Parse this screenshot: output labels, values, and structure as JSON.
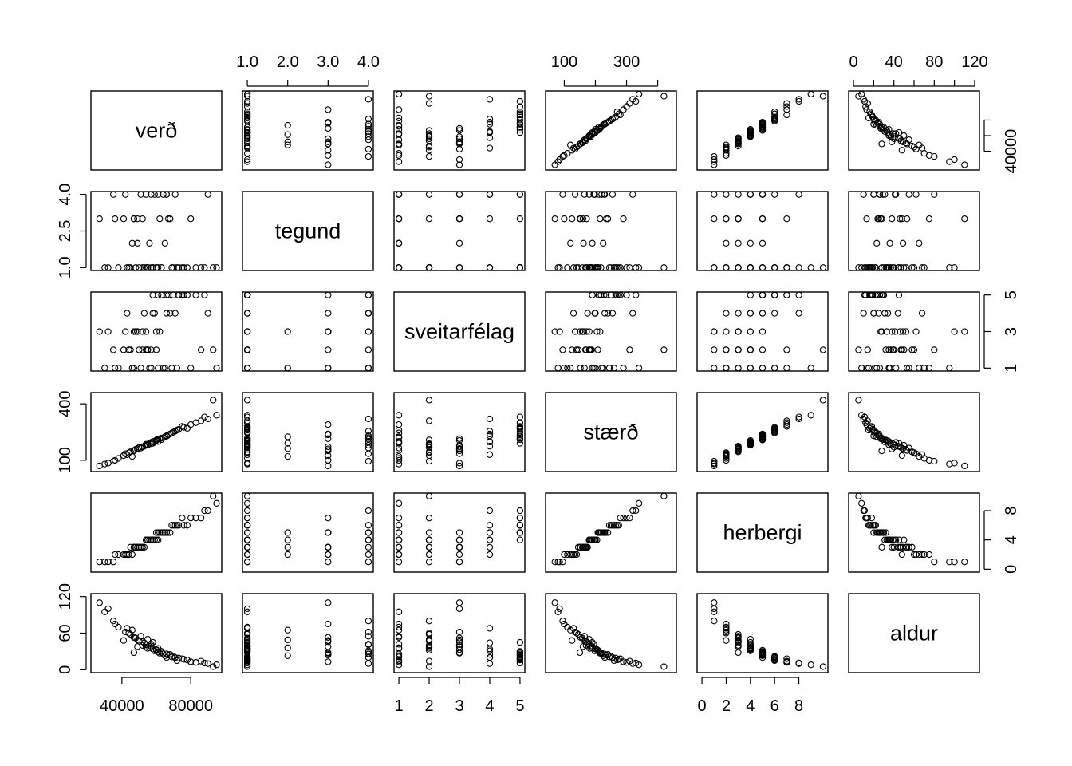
{
  "chart_data": {
    "type": "scatter",
    "subtype": "scatterplot-matrix",
    "title": "",
    "variables": [
      {
        "name": "verð",
        "ticks": [
          40000,
          80000
        ],
        "tick_labels": [
          "40000",
          "80000"
        ],
        "range": [
          22000,
          98000
        ]
      },
      {
        "name": "tegund",
        "ticks": [
          1.0,
          2.0,
          3.0,
          4.0
        ],
        "tick_labels": [
          "1.0",
          "2.0",
          "3.0",
          "4.0"
        ],
        "left_ticks": [
          1.0,
          2.5,
          4.0
        ],
        "left_tick_labels": [
          "1.0",
          "2.5",
          "4.0"
        ],
        "range": [
          0.88,
          4.12
        ]
      },
      {
        "name": "sveitarfélag",
        "ticks": [
          1,
          2,
          3,
          4,
          5
        ],
        "tick_labels": [
          "1",
          "2",
          "3",
          "4",
          "5"
        ],
        "right_ticks": [
          1,
          3,
          5
        ],
        "right_tick_labels": [
          "1",
          "3",
          "5"
        ],
        "range": [
          0.84,
          5.16
        ]
      },
      {
        "name": "stærð",
        "ticks": [
          100,
          200,
          300,
          400
        ],
        "tick_labels": [
          "100",
          "",
          "300",
          ""
        ],
        "left_ticks": [
          100,
          400
        ],
        "left_tick_labels": [
          "100",
          "400"
        ],
        "range": [
          40,
          460
        ]
      },
      {
        "name": "herbergi",
        "ticks": [
          0,
          2,
          4,
          6,
          8
        ],
        "tick_labels": [
          "0",
          "2",
          "4",
          "6",
          "8"
        ],
        "right_ticks": [
          0,
          4,
          8
        ],
        "right_tick_labels": [
          "0",
          "4",
          "8"
        ],
        "range": [
          -0.4,
          10.4
        ]
      },
      {
        "name": "aldur",
        "ticks": [
          0,
          20,
          40,
          60,
          80,
          100,
          120
        ],
        "tick_labels": [
          "0",
          "",
          "40",
          "",
          "80",
          "",
          "120"
        ],
        "left_ticks": [
          0,
          60,
          120
        ],
        "left_tick_labels": [
          "0",
          "60",
          "120"
        ],
        "range": [
          -4.8,
          124.8
        ]
      }
    ],
    "axis_sides": {
      "top": [
        1,
        3,
        5
      ],
      "bottom": [
        0,
        2,
        4
      ],
      "left": [
        1,
        3,
        5
      ],
      "right": [
        0,
        2,
        4
      ]
    },
    "extra_ticks": {
      "verð_right": [
        40000,
        55000,
        70000
      ],
      "verð_right_labels": [
        "40000",
        "",
        ""
      ]
    },
    "points": {
      "verð": [
        61000,
        52000,
        47000,
        58000,
        66000,
        72000,
        55000,
        49000,
        63000,
        57000,
        44000,
        68000,
        75000,
        51000,
        60000,
        54000,
        46000,
        70000,
        62000,
        59000,
        38000,
        41000,
        83000,
        90000,
        95000,
        35000,
        30000,
        27000,
        78000,
        86000,
        64000,
        53000,
        48000,
        67000,
        56000,
        50000,
        73000,
        42000,
        80000,
        58000,
        45000,
        61000,
        69000,
        52000,
        57000,
        65000,
        43000,
        76000,
        54000,
        60000,
        36000,
        88000,
        93000,
        32000,
        71000,
        47000,
        63000,
        55000,
        49000,
        66000
      ],
      "tegund": [
        1,
        1,
        3,
        1,
        4,
        1,
        1,
        3,
        1,
        4,
        1,
        3,
        1,
        4,
        1,
        1,
        2,
        1,
        3,
        4,
        1,
        3,
        1,
        4,
        1,
        4,
        1,
        3,
        1,
        1,
        4,
        1,
        1,
        3,
        2,
        1,
        1,
        4,
        3,
        1,
        1,
        4,
        1,
        3,
        1,
        2,
        1,
        1,
        4,
        1,
        3,
        1,
        1,
        1,
        4,
        3,
        1,
        1,
        2,
        4
      ],
      "sveitarfélag": [
        1,
        2,
        3,
        5,
        4,
        1,
        2,
        3,
        5,
        1,
        2,
        4,
        5,
        1,
        3,
        2,
        1,
        5,
        3,
        4,
        1,
        2,
        5,
        4,
        1,
        2,
        1,
        3,
        5,
        2,
        1,
        4,
        3,
        5,
        1,
        2,
        5,
        3,
        1,
        4,
        2,
        5,
        1,
        3,
        2,
        1,
        4,
        5,
        3,
        2,
        1,
        5,
        2,
        3,
        4,
        1,
        5,
        2,
        3,
        5
      ],
      "stærð": [
        200,
        170,
        150,
        190,
        230,
        260,
        180,
        160,
        210,
        195,
        140,
        240,
        280,
        165,
        205,
        185,
        120,
        250,
        215,
        198,
        110,
        125,
        300,
        320,
        340,
        95,
        80,
        70,
        270,
        310,
        220,
        175,
        158,
        235,
        190,
        168,
        265,
        135,
        290,
        200,
        145,
        212,
        245,
        172,
        188,
        225,
        130,
        275,
        180,
        208,
        100,
        330,
        420,
        85,
        255,
        152,
        218,
        182,
        162,
        228
      ],
      "herbergi": [
        4,
        3,
        3,
        4,
        5,
        6,
        4,
        3,
        5,
        4,
        2,
        5,
        7,
        3,
        4,
        4,
        2,
        6,
        5,
        4,
        2,
        2,
        7,
        8,
        9,
        1,
        1,
        1,
        6,
        7,
        5,
        3,
        3,
        5,
        4,
        3,
        6,
        2,
        7,
        4,
        3,
        5,
        6,
        3,
        4,
        5,
        2,
        6,
        4,
        5,
        2,
        8,
        10,
        1,
        6,
        3,
        5,
        4,
        3,
        5
      ],
      "aldur": [
        35,
        40,
        28,
        45,
        20,
        15,
        50,
        38,
        30,
        42,
        60,
        25,
        18,
        55,
        33,
        37,
        65,
        22,
        27,
        31,
        70,
        48,
        12,
        10,
        8,
        80,
        95,
        110,
        16,
        14,
        26,
        44,
        52,
        24,
        36,
        47,
        19,
        62,
        13,
        34,
        58,
        29,
        21,
        46,
        39,
        23,
        68,
        17,
        41,
        32,
        75,
        11,
        5,
        100,
        20,
        53,
        28,
        35,
        49,
        26
      ]
    }
  }
}
